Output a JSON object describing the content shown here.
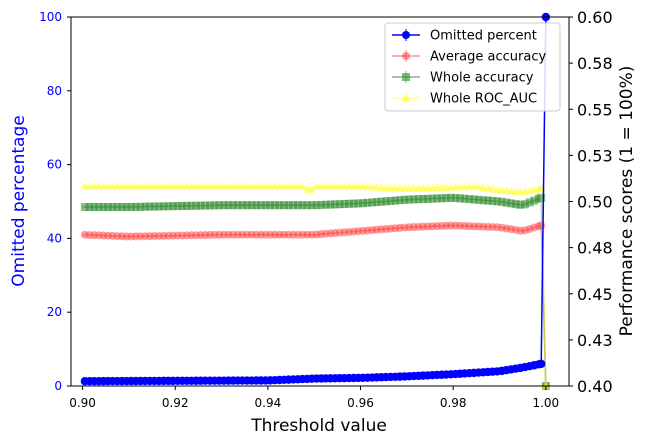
{
  "chart_data": {
    "type": "line",
    "xlabel": "Threshold value",
    "ylabel_left": "Omitted percentage",
    "ylabel_right": "Performance scores (1 = 100%)",
    "xlim": [
      0.8975,
      1.005
    ],
    "ylim_left": [
      0,
      100
    ],
    "ylim_right": [
      0.4,
      0.6
    ],
    "x_ticks": [
      0.9,
      0.92,
      0.94,
      0.96,
      0.98,
      1.0
    ],
    "x_tick_labels": [
      "0.90",
      "0.92",
      "0.94",
      "0.96",
      "0.98",
      "1.00"
    ],
    "y_left_ticks": [
      0,
      20,
      40,
      60,
      80,
      100
    ],
    "y_left_tick_labels": [
      "0",
      "20",
      "40",
      "60",
      "80",
      "100"
    ],
    "y_right_ticks": [
      0.4,
      0.425,
      0.45,
      0.475,
      0.5,
      0.525,
      0.55,
      0.575,
      0.6
    ],
    "y_right_tick_labels": [
      "0.40",
      "0.43",
      "0.45",
      "0.48",
      "0.50",
      "0.53",
      "0.55",
      "0.58",
      "0.60"
    ],
    "grid": false,
    "legend_position": "top-right",
    "series": [
      {
        "name": "Omitted percent",
        "axis": "left",
        "color": "#0000ff",
        "marker": "circle",
        "points": [
          [
            0.9,
            1.3
          ],
          [
            0.92,
            1.4
          ],
          [
            0.94,
            1.5
          ],
          [
            0.95,
            2.0
          ],
          [
            0.96,
            2.2
          ],
          [
            0.97,
            2.6
          ],
          [
            0.98,
            3.2
          ],
          [
            0.99,
            4.0
          ],
          [
            0.995,
            5.0
          ],
          [
            0.999,
            6.0
          ],
          [
            1.0,
            100
          ]
        ]
      },
      {
        "name": "Average accuracy",
        "axis": "right",
        "color": "#ff4a4a",
        "marker": "circle",
        "points": [
          [
            0.9,
            0.482
          ],
          [
            0.91,
            0.481
          ],
          [
            0.93,
            0.482
          ],
          [
            0.95,
            0.482
          ],
          [
            0.96,
            0.484
          ],
          [
            0.97,
            0.486
          ],
          [
            0.98,
            0.487
          ],
          [
            0.99,
            0.486
          ],
          [
            0.995,
            0.484
          ],
          [
            0.999,
            0.487
          ],
          [
            1.0,
            0.4
          ]
        ]
      },
      {
        "name": "Whole accuracy",
        "axis": "right",
        "color": "#2e8b2e",
        "marker": "square",
        "points": [
          [
            0.9,
            0.497
          ],
          [
            0.91,
            0.497
          ],
          [
            0.93,
            0.498
          ],
          [
            0.945,
            0.498
          ],
          [
            0.95,
            0.498
          ],
          [
            0.96,
            0.499
          ],
          [
            0.97,
            0.501
          ],
          [
            0.98,
            0.502
          ],
          [
            0.99,
            0.5
          ],
          [
            0.995,
            0.498
          ],
          [
            0.999,
            0.502
          ],
          [
            1.0,
            0.4
          ]
        ]
      },
      {
        "name": "Whole ROC_AUC",
        "axis": "right",
        "color": "#ffff33",
        "marker": "triangle",
        "points": [
          [
            0.9,
            0.508
          ],
          [
            0.91,
            0.508
          ],
          [
            0.93,
            0.508
          ],
          [
            0.948,
            0.508
          ],
          [
            0.949,
            0.505
          ],
          [
            0.95,
            0.508
          ],
          [
            0.96,
            0.508
          ],
          [
            0.97,
            0.507
          ],
          [
            0.985,
            0.508
          ],
          [
            0.99,
            0.506
          ],
          [
            0.995,
            0.505
          ],
          [
            0.999,
            0.507
          ],
          [
            1.0,
            0.4
          ]
        ]
      }
    ]
  }
}
